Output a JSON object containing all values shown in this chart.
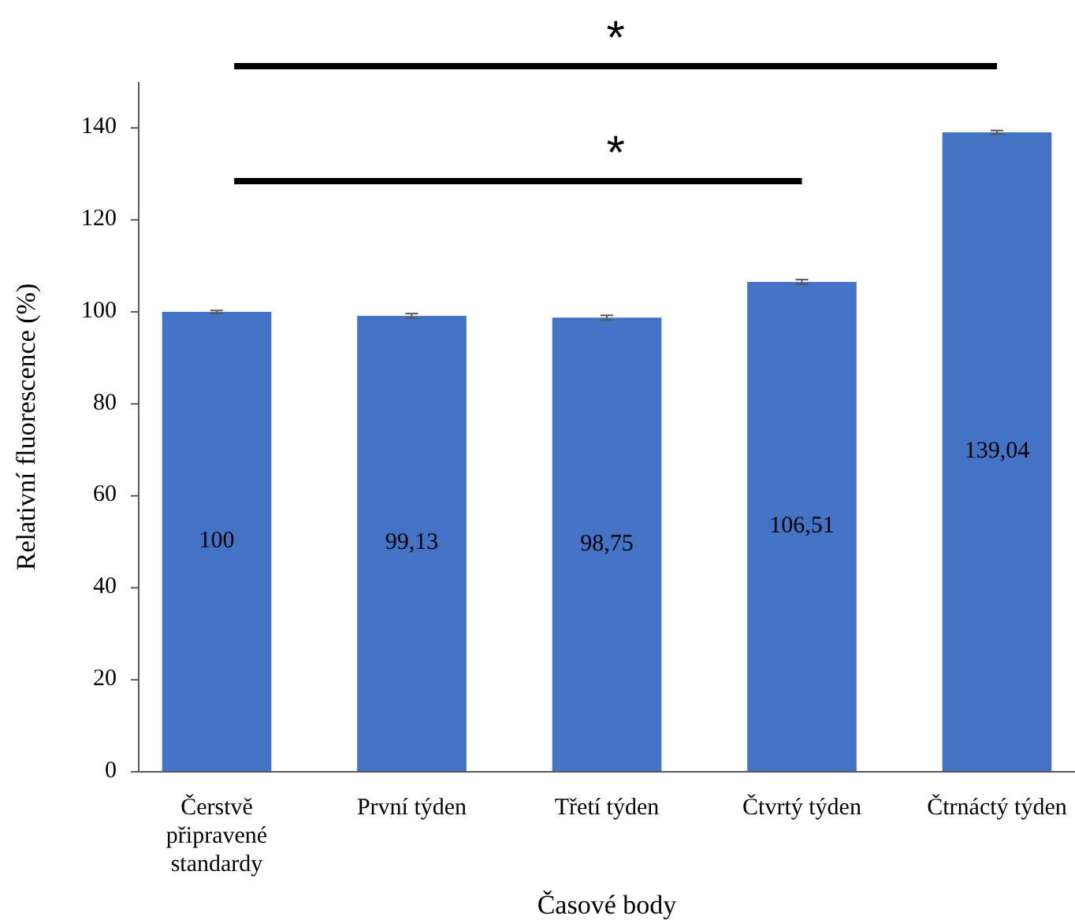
{
  "chart_data": {
    "type": "bar",
    "xlabel": "Časové body",
    "ylabel": "Relativní fluorescence (%)",
    "categories": [
      "Čerstvě připravené standardy",
      "První týden",
      "Třetí týden",
      "Čtvrtý týden",
      "Čtrnáctý týden"
    ],
    "values": [
      100,
      99.13,
      98.75,
      106.51,
      139.04
    ],
    "value_labels": [
      "100",
      "99,13",
      "98,75",
      "106,51",
      "139,04"
    ],
    "errors": [
      0.3,
      0.5,
      0.5,
      0.5,
      0.4
    ],
    "color": "#4472c4",
    "ylim": [
      0,
      150
    ],
    "yticks": [
      0,
      20,
      40,
      60,
      80,
      100,
      120,
      140
    ],
    "grid": false,
    "annotations": [
      "*",
      "*"
    ]
  }
}
